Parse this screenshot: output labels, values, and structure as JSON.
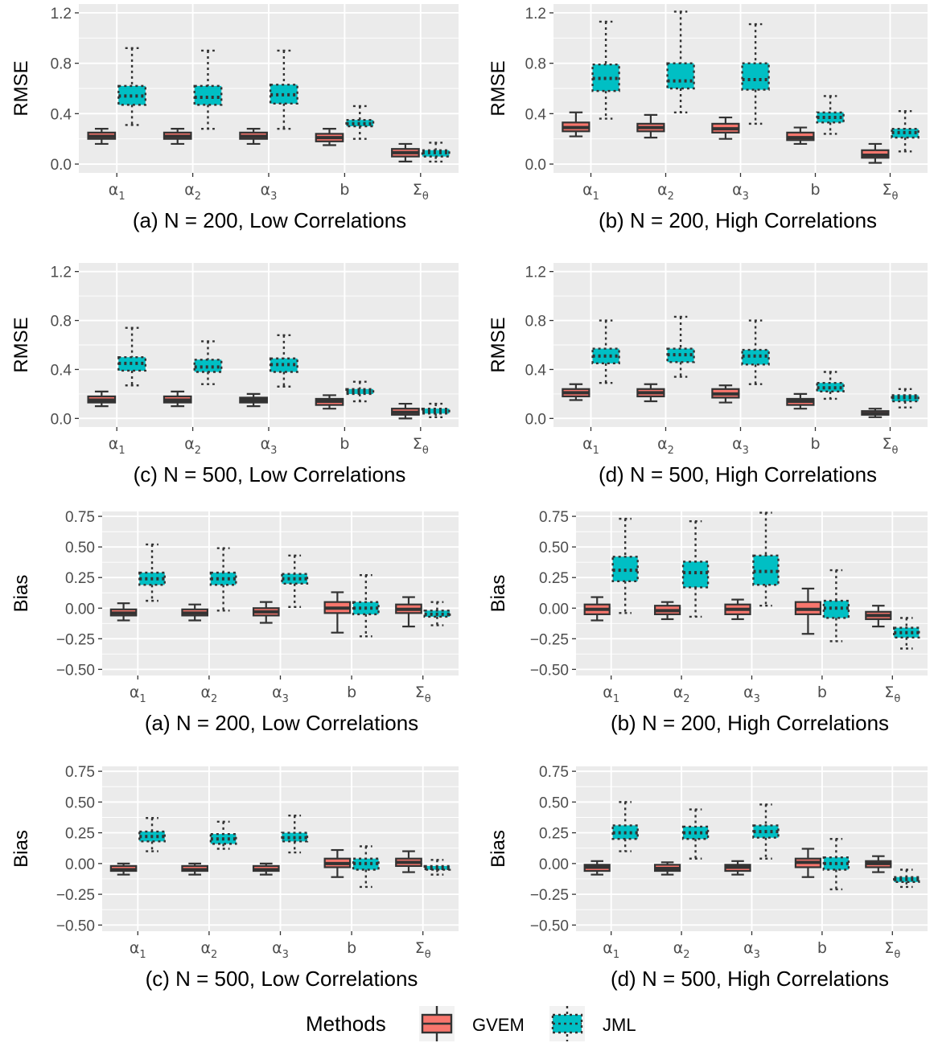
{
  "legend": {
    "title": "Methods",
    "items": [
      {
        "label": "GVEM",
        "fill": "#f8766d",
        "line": "solid"
      },
      {
        "label": "JML",
        "fill": "#00bfc4",
        "line": "dotted"
      }
    ]
  },
  "colors": {
    "panel_bg": "#ebebeb",
    "grid": "#ffffff",
    "box_line": "#333333",
    "tick_text": "#4d4d4d",
    "gvem": "#f8766d",
    "jml": "#00bfc4"
  },
  "chart_data": [
    {
      "type": "box",
      "title": "(a) N = 200, Low Correlations",
      "ylabel": "RMSE",
      "ylim": [
        -0.07,
        1.27
      ],
      "yticks": [
        "0.0",
        "0.4",
        "0.8",
        "1.2"
      ],
      "ytick_values": [
        0,
        0.4,
        0.8,
        1.2
      ],
      "categories": [
        "α1",
        "α2",
        "α3",
        "b",
        "Σθ"
      ],
      "series": [
        {
          "name": "GVEM",
          "boxes": [
            [
              0.16,
              0.2,
              0.22,
              0.25,
              0.28
            ],
            [
              0.16,
              0.2,
              0.22,
              0.25,
              0.28
            ],
            [
              0.16,
              0.2,
              0.22,
              0.25,
              0.28
            ],
            [
              0.15,
              0.18,
              0.21,
              0.24,
              0.28
            ],
            [
              0.02,
              0.06,
              0.09,
              0.12,
              0.16
            ]
          ]
        },
        {
          "name": "JML",
          "boxes": [
            [
              0.31,
              0.47,
              0.54,
              0.62,
              0.92
            ],
            [
              0.28,
              0.47,
              0.53,
              0.62,
              0.9
            ],
            [
              0.28,
              0.48,
              0.55,
              0.63,
              0.9
            ],
            [
              0.2,
              0.3,
              0.32,
              0.35,
              0.46
            ],
            [
              0.02,
              0.06,
              0.09,
              0.11,
              0.17
            ]
          ]
        }
      ]
    },
    {
      "type": "box",
      "title": "(b) N = 200, High Correlations",
      "ylabel": "RMSE",
      "ylim": [
        -0.07,
        1.27
      ],
      "yticks": [
        "0.0",
        "0.4",
        "0.8",
        "1.2"
      ],
      "ytick_values": [
        0,
        0.4,
        0.8,
        1.2
      ],
      "categories": [
        "α1",
        "α2",
        "α3",
        "b",
        "Σθ"
      ],
      "series": [
        {
          "name": "GVEM",
          "boxes": [
            [
              0.22,
              0.26,
              0.29,
              0.33,
              0.41
            ],
            [
              0.21,
              0.26,
              0.29,
              0.32,
              0.39
            ],
            [
              0.2,
              0.25,
              0.28,
              0.32,
              0.37
            ],
            [
              0.16,
              0.19,
              0.21,
              0.25,
              0.29
            ],
            [
              0.01,
              0.05,
              0.07,
              0.11,
              0.16
            ]
          ]
        },
        {
          "name": "JML",
          "boxes": [
            [
              0.36,
              0.58,
              0.68,
              0.79,
              1.13
            ],
            [
              0.41,
              0.6,
              0.66,
              0.8,
              1.21
            ],
            [
              0.32,
              0.59,
              0.67,
              0.8,
              1.11
            ],
            [
              0.24,
              0.33,
              0.37,
              0.41,
              0.54
            ],
            [
              0.1,
              0.21,
              0.25,
              0.28,
              0.42
            ]
          ]
        }
      ]
    },
    {
      "type": "box",
      "title": "(c) N = 500, Low Correlations",
      "ylabel": "RMSE",
      "ylim": [
        -0.07,
        1.27
      ],
      "yticks": [
        "0.0",
        "0.4",
        "0.8",
        "1.2"
      ],
      "ytick_values": [
        0,
        0.4,
        0.8,
        1.2
      ],
      "categories": [
        "α1",
        "α2",
        "α3",
        "b",
        "Σθ"
      ],
      "series": [
        {
          "name": "GVEM",
          "boxes": [
            [
              0.1,
              0.13,
              0.15,
              0.18,
              0.22
            ],
            [
              0.1,
              0.13,
              0.15,
              0.18,
              0.22
            ],
            [
              0.1,
              0.13,
              0.15,
              0.17,
              0.2
            ],
            [
              0.08,
              0.11,
              0.14,
              0.16,
              0.19
            ],
            [
              0.0,
              0.03,
              0.05,
              0.08,
              0.12
            ]
          ]
        },
        {
          "name": "JML",
          "boxes": [
            [
              0.27,
              0.39,
              0.45,
              0.5,
              0.74
            ],
            [
              0.28,
              0.38,
              0.42,
              0.48,
              0.63
            ],
            [
              0.26,
              0.38,
              0.44,
              0.49,
              0.68
            ],
            [
              0.14,
              0.2,
              0.22,
              0.24,
              0.3
            ],
            [
              0.01,
              0.04,
              0.06,
              0.08,
              0.12
            ]
          ]
        }
      ]
    },
    {
      "type": "box",
      "title": "(d) N = 500, High Correlations",
      "ylabel": "RMSE",
      "ylim": [
        -0.07,
        1.27
      ],
      "yticks": [
        "0.0",
        "0.4",
        "0.8",
        "1.2"
      ],
      "ytick_values": [
        0,
        0.4,
        0.8,
        1.2
      ],
      "categories": [
        "α1",
        "α2",
        "α3",
        "b",
        "Σθ"
      ],
      "series": [
        {
          "name": "GVEM",
          "boxes": [
            [
              0.15,
              0.18,
              0.21,
              0.24,
              0.28
            ],
            [
              0.14,
              0.18,
              0.21,
              0.24,
              0.28
            ],
            [
              0.13,
              0.17,
              0.2,
              0.24,
              0.27
            ],
            [
              0.08,
              0.11,
              0.14,
              0.16,
              0.2
            ],
            [
              0.01,
              0.03,
              0.04,
              0.06,
              0.08
            ]
          ]
        },
        {
          "name": "JML",
          "boxes": [
            [
              0.29,
              0.45,
              0.51,
              0.57,
              0.8
            ],
            [
              0.34,
              0.46,
              0.52,
              0.57,
              0.83
            ],
            [
              0.28,
              0.44,
              0.51,
              0.56,
              0.8
            ],
            [
              0.16,
              0.22,
              0.25,
              0.29,
              0.38
            ],
            [
              0.09,
              0.14,
              0.17,
              0.19,
              0.24
            ]
          ]
        }
      ]
    },
    {
      "type": "box",
      "title": "(a) N = 200, Low Correlations",
      "ylabel": "Bias",
      "ylim": [
        -0.55,
        0.79
      ],
      "yticks": [
        "−0.50",
        "−0.25",
        "0.00",
        "0.25",
        "0.50",
        "0.75"
      ],
      "ytick_values": [
        -0.5,
        -0.25,
        0,
        0.25,
        0.5,
        0.75
      ],
      "categories": [
        "α1",
        "α2",
        "α3",
        "b",
        "Σθ"
      ],
      "series": [
        {
          "name": "GVEM",
          "boxes": [
            [
              -0.1,
              -0.06,
              -0.04,
              -0.01,
              0.04
            ],
            [
              -0.1,
              -0.06,
              -0.04,
              -0.01,
              0.03
            ],
            [
              -0.12,
              -0.06,
              -0.03,
              0.0,
              0.05
            ],
            [
              -0.2,
              -0.04,
              0.0,
              0.05,
              0.13
            ],
            [
              -0.15,
              -0.04,
              -0.01,
              0.03,
              0.09
            ]
          ]
        },
        {
          "name": "JML",
          "boxes": [
            [
              0.06,
              0.19,
              0.24,
              0.29,
              0.52
            ],
            [
              -0.02,
              0.19,
              0.24,
              0.29,
              0.49
            ],
            [
              0.01,
              0.2,
              0.24,
              0.28,
              0.43
            ],
            [
              -0.23,
              -0.05,
              0.0,
              0.05,
              0.27
            ],
            [
              -0.14,
              -0.07,
              -0.05,
              -0.02,
              0.05
            ]
          ]
        }
      ]
    },
    {
      "type": "box",
      "title": "(b) N = 200, High Correlations",
      "ylabel": "Bias",
      "ylim": [
        -0.55,
        0.79
      ],
      "yticks": [
        "−0.50",
        "−0.25",
        "0.00",
        "0.25",
        "0.50",
        "0.75"
      ],
      "ytick_values": [
        -0.5,
        -0.25,
        0,
        0.25,
        0.5,
        0.75
      ],
      "categories": [
        "α1",
        "α2",
        "α3",
        "b",
        "Σθ"
      ],
      "series": [
        {
          "name": "GVEM",
          "boxes": [
            [
              -0.1,
              -0.05,
              -0.01,
              0.03,
              0.09
            ],
            [
              -0.09,
              -0.05,
              -0.02,
              0.02,
              0.05
            ],
            [
              -0.09,
              -0.05,
              -0.01,
              0.03,
              0.07
            ],
            [
              -0.21,
              -0.05,
              -0.01,
              0.05,
              0.16
            ],
            [
              -0.15,
              -0.09,
              -0.06,
              -0.03,
              0.02
            ]
          ]
        },
        {
          "name": "JML",
          "boxes": [
            [
              -0.04,
              0.22,
              0.31,
              0.42,
              0.73
            ],
            [
              -0.07,
              0.17,
              0.29,
              0.38,
              0.71
            ],
            [
              0.02,
              0.19,
              0.3,
              0.43,
              0.78
            ],
            [
              -0.27,
              -0.08,
              0.0,
              0.06,
              0.31
            ],
            [
              -0.33,
              -0.24,
              -0.2,
              -0.16,
              -0.08
            ]
          ]
        }
      ]
    },
    {
      "type": "box",
      "title": "(c) N = 500, Low Correlations",
      "ylabel": "Bias",
      "ylim": [
        -0.55,
        0.79
      ],
      "yticks": [
        "−0.50",
        "−0.25",
        "0.00",
        "0.25",
        "0.50",
        "0.75"
      ],
      "ytick_values": [
        -0.5,
        -0.25,
        0,
        0.25,
        0.5,
        0.75
      ],
      "categories": [
        "α1",
        "α2",
        "α3",
        "b",
        "Σθ"
      ],
      "series": [
        {
          "name": "GVEM",
          "boxes": [
            [
              -0.09,
              -0.06,
              -0.05,
              -0.02,
              0.0
            ],
            [
              -0.09,
              -0.06,
              -0.05,
              -0.02,
              0.0
            ],
            [
              -0.09,
              -0.06,
              -0.05,
              -0.02,
              0.0
            ],
            [
              -0.11,
              -0.03,
              0.0,
              0.04,
              0.11
            ],
            [
              -0.07,
              -0.02,
              0.01,
              0.04,
              0.1
            ]
          ]
        },
        {
          "name": "JML",
          "boxes": [
            [
              0.1,
              0.18,
              0.22,
              0.26,
              0.37
            ],
            [
              0.12,
              0.16,
              0.2,
              0.24,
              0.34
            ],
            [
              0.09,
              0.18,
              0.21,
              0.25,
              0.39
            ],
            [
              -0.19,
              -0.05,
              0.0,
              0.04,
              0.14
            ],
            [
              -0.09,
              -0.05,
              -0.04,
              -0.02,
              0.03
            ]
          ]
        }
      ]
    },
    {
      "type": "box",
      "title": "(d) N = 500, High Correlations",
      "ylabel": "Bias",
      "ylim": [
        -0.55,
        0.79
      ],
      "yticks": [
        "−0.50",
        "−0.25",
        "0.00",
        "0.25",
        "0.50",
        "0.75"
      ],
      "ytick_values": [
        -0.5,
        -0.25,
        0,
        0.25,
        0.5,
        0.75
      ],
      "categories": [
        "α1",
        "α2",
        "α3",
        "b",
        "Σθ"
      ],
      "series": [
        {
          "name": "GVEM",
          "boxes": [
            [
              -0.09,
              -0.06,
              -0.03,
              -0.01,
              0.02
            ],
            [
              -0.09,
              -0.06,
              -0.04,
              -0.01,
              0.01
            ],
            [
              -0.09,
              -0.06,
              -0.03,
              -0.01,
              0.02
            ],
            [
              -0.11,
              -0.03,
              0.01,
              0.04,
              0.12
            ],
            [
              -0.07,
              -0.03,
              0.0,
              0.02,
              0.06
            ]
          ]
        },
        {
          "name": "JML",
          "boxes": [
            [
              0.1,
              0.2,
              0.25,
              0.31,
              0.5
            ],
            [
              0.04,
              0.2,
              0.25,
              0.3,
              0.44
            ],
            [
              0.04,
              0.21,
              0.26,
              0.31,
              0.48
            ],
            [
              -0.21,
              -0.05,
              0.0,
              0.05,
              0.2
            ],
            [
              -0.19,
              -0.15,
              -0.13,
              -0.11,
              -0.05
            ]
          ]
        }
      ]
    }
  ]
}
